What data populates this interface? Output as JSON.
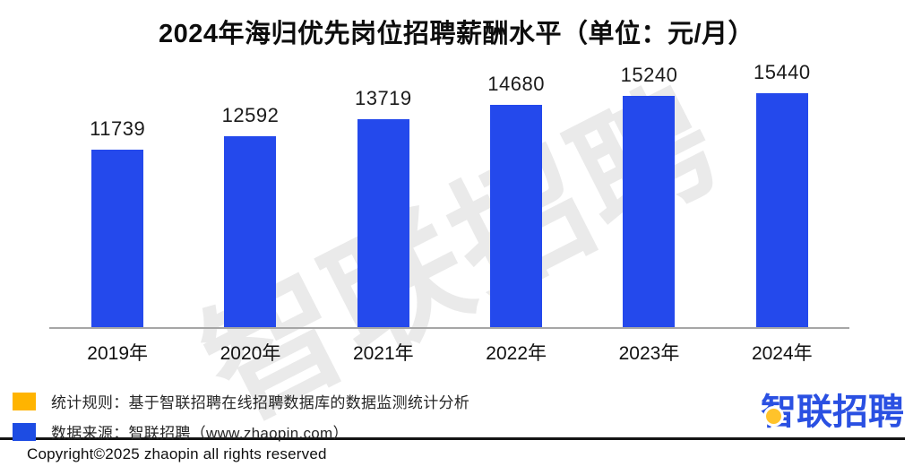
{
  "page": {
    "title": "2024年海归优先岗位招聘薪酬水平（单位：元/月）",
    "copyright": "Copyright©2025 zhaopin all rights reserved"
  },
  "chart_data": {
    "type": "bar",
    "title": "2024年海归优先岗位招聘薪酬水平",
    "unit_note": "单位：元/月",
    "categories": [
      "2019年",
      "2020年",
      "2021年",
      "2022年",
      "2023年",
      "2024年"
    ],
    "values": [
      11739,
      12592,
      13719,
      14680,
      15240,
      15440
    ],
    "ylim": [
      0,
      15440
    ],
    "bar_color": "#2449EC",
    "axis_line_color": "#A6A6A6",
    "grid": "off",
    "legend_position": "none",
    "data_labels": "above bars"
  },
  "watermark": {
    "text": "智联招聘",
    "color": "#EAEAEA"
  },
  "footnotes": {
    "rule": {
      "swatch_color": "#FFB400",
      "text": "统计规则：基于智联招聘在线招聘数据库的数据监测统计分析"
    },
    "source": {
      "swatch_color": "#1D4CE3",
      "text": "数据来源：智联招聘（www.zhaopin.com）"
    }
  },
  "logo": {
    "text": "智联招聘",
    "color": "#2A50E2",
    "dot_color": "#FFC32B"
  }
}
